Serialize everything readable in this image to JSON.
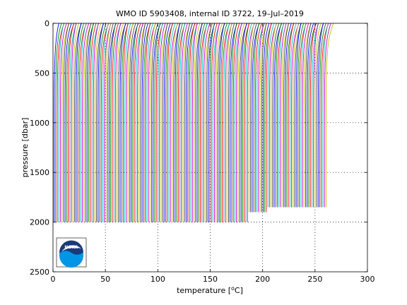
{
  "chart_data": {
    "type": "line",
    "title": "WMO ID 5903408, internal ID 3722, 19–Jul–2019",
    "xlabel_prefix": "temperature [",
    "xlabel_unit_sup": "o",
    "xlabel_suffix": "C]",
    "ylabel": "pressure [dbar]",
    "xlim": [
      0,
      300
    ],
    "ylim": [
      0,
      2500
    ],
    "y_reversed": true,
    "xticks": [
      "0",
      "50",
      "100",
      "150",
      "200",
      "250",
      "300"
    ],
    "yticks": [
      "0",
      "500",
      "1000",
      "1500",
      "2000",
      "2500"
    ],
    "grid": "dotted",
    "profile_offset_step": 1.5,
    "profile_count": 174,
    "profile_colors": [
      "#0000ff",
      "#008000",
      "#ff0000",
      "#00bfbf",
      "#bf00bf",
      "#bfbf00",
      "#404040"
    ],
    "max_pressure_early": 2000,
    "max_pressure_late": 1850,
    "surface_temperature": 7,
    "deep_temperature": 1,
    "logo": {
      "text": "NOAA",
      "colors": [
        "#1a3a7a",
        "#0096e6",
        "#ffffff"
      ]
    }
  }
}
